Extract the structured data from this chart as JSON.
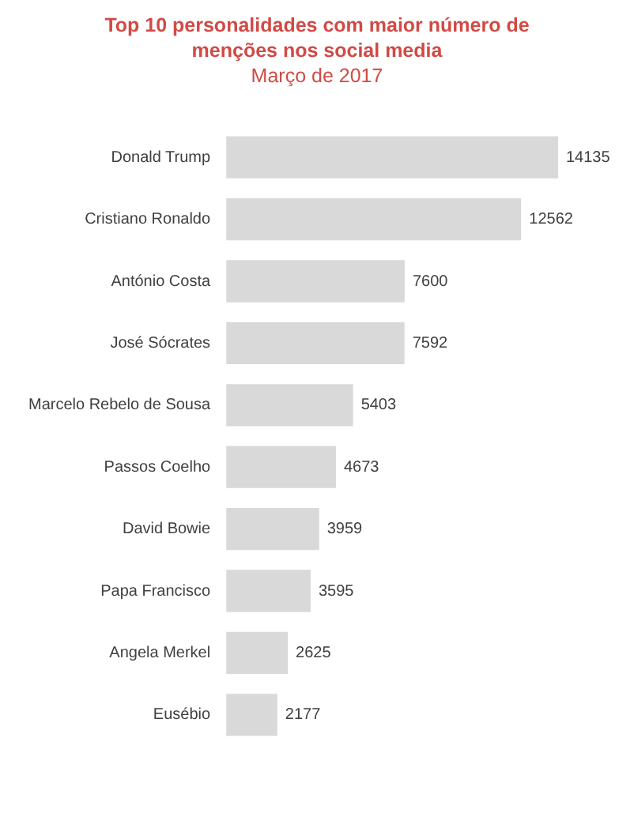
{
  "chart_data": {
    "type": "bar",
    "orientation": "horizontal",
    "title": "Top 10 personalidades com maior número de menções nos social media",
    "subtitle": "Março de 2017",
    "categories": [
      "Donald Trump",
      "Cristiano Ronaldo",
      "António Costa",
      "José Sócrates",
      "Marcelo Rebelo de Sousa",
      "Passos Coelho",
      "David Bowie",
      "Papa Francisco",
      "Angela Merkel",
      "Eusébio"
    ],
    "values": [
      14135,
      12562,
      7600,
      7592,
      5403,
      4673,
      3959,
      3595,
      2625,
      2177
    ],
    "color": "#d9d9d9",
    "data_labels": true,
    "tick_labels": "y"
  }
}
